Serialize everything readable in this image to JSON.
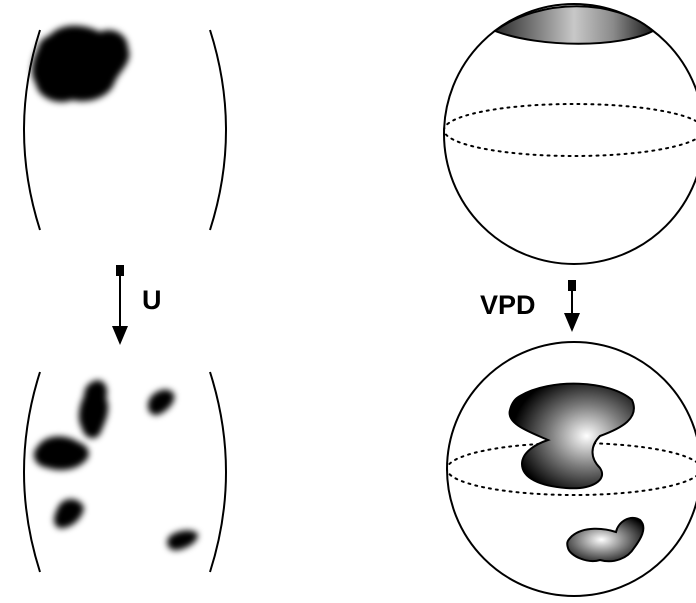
{
  "labels": {
    "u": "U",
    "vpd": "VPD"
  },
  "colors": {
    "ink": "#000000",
    "background": "#ffffff",
    "highlight": "#ffffff"
  }
}
